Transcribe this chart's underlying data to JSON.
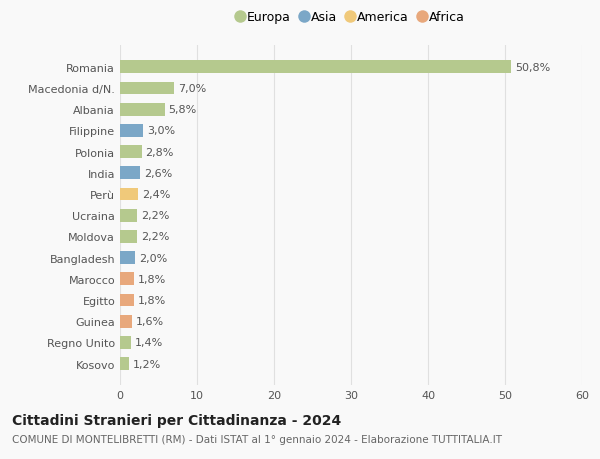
{
  "categories": [
    "Kosovo",
    "Regno Unito",
    "Guinea",
    "Egitto",
    "Marocco",
    "Bangladesh",
    "Moldova",
    "Ucraina",
    "Perù",
    "India",
    "Polonia",
    "Filippine",
    "Albania",
    "Macedonia d/N.",
    "Romania"
  ],
  "values": [
    1.2,
    1.4,
    1.6,
    1.8,
    1.8,
    2.0,
    2.2,
    2.2,
    2.4,
    2.6,
    2.8,
    3.0,
    5.8,
    7.0,
    50.8
  ],
  "colors": [
    "#b5c98e",
    "#b5c98e",
    "#e8a87c",
    "#e8a87c",
    "#e8a87c",
    "#7ba7c7",
    "#b5c98e",
    "#b5c98e",
    "#f0c97a",
    "#7ba7c7",
    "#b5c98e",
    "#7ba7c7",
    "#b5c98e",
    "#b5c98e",
    "#b5c98e"
  ],
  "labels": [
    "1,2%",
    "1,4%",
    "1,6%",
    "1,8%",
    "1,8%",
    "2,0%",
    "2,2%",
    "2,2%",
    "2,4%",
    "2,6%",
    "2,8%",
    "3,0%",
    "5,8%",
    "7,0%",
    "50,8%"
  ],
  "legend": [
    {
      "label": "Europa",
      "color": "#b5c98e"
    },
    {
      "label": "Asia",
      "color": "#7ba7c7"
    },
    {
      "label": "America",
      "color": "#f0c97a"
    },
    {
      "label": "Africa",
      "color": "#e8a87c"
    }
  ],
  "xlim": [
    0,
    60
  ],
  "xticks": [
    0,
    10,
    20,
    30,
    40,
    50,
    60
  ],
  "title": "Cittadini Stranieri per Cittadinanza - 2024",
  "subtitle": "COMUNE DI MONTELIBRETTI (RM) - Dati ISTAT al 1° gennaio 2024 - Elaborazione TUTTITALIA.IT",
  "background_color": "#f9f9f9",
  "grid_color": "#e0e0e0",
  "bar_height": 0.6,
  "title_fontsize": 10,
  "subtitle_fontsize": 7.5,
  "tick_fontsize": 8,
  "label_fontsize": 8
}
